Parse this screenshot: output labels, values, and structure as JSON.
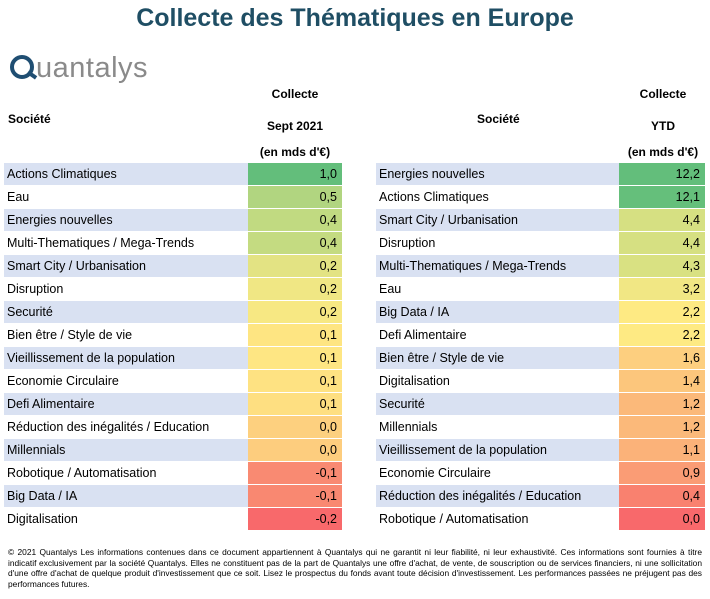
{
  "title": "Collecte des Thématiques en Europe",
  "logo_text": "uantalys",
  "left_table": {
    "col_company": "Société",
    "col_value_line1": "Collecte",
    "col_value_line2": "Sept 2021",
    "col_value_line3": "(en mds d'€)"
  },
  "right_table": {
    "col_company": "Société",
    "col_value_line1": "Collecte",
    "col_value_line2": "YTD",
    "col_value_line3": "(en mds d'€)"
  },
  "chart_data": [
    {
      "type": "table",
      "title": "Collecte Sept 2021 (en mds d'€)",
      "rows": [
        {
          "name": "Actions Climatiques",
          "value": "1,0",
          "color": "#63be7b"
        },
        {
          "name": "Eau",
          "value": "0,5",
          "color": "#b1d580"
        },
        {
          "name": "Energies nouvelles",
          "value": "0,4",
          "color": "#c1da81"
        },
        {
          "name": "Multi-Thematiques / Mega-Trends",
          "value": "0,4",
          "color": "#c4db81"
        },
        {
          "name": "Smart City / Urbanisation",
          "value": "0,2",
          "color": "#e3e383"
        },
        {
          "name": "Disruption",
          "value": "0,2",
          "color": "#f0e784"
        },
        {
          "name": "Securité",
          "value": "0,2",
          "color": "#f7e883"
        },
        {
          "name": "Bien être / Style de vie",
          "value": "0,1",
          "color": "#fee582"
        },
        {
          "name": "Vieillissement de la population",
          "value": "0,1",
          "color": "#fee683"
        },
        {
          "name": "Economie Circulaire",
          "value": "0,1",
          "color": "#fee282"
        },
        {
          "name": "Defi Alimentaire",
          "value": "0,1",
          "color": "#fedf81"
        },
        {
          "name": "Réduction des inégalités / Education",
          "value": "0,0",
          "color": "#fdd07f"
        },
        {
          "name": "Millennials",
          "value": "0,0",
          "color": "#fdcd7e"
        },
        {
          "name": "Robotique / Automatisation",
          "value": "-0,1",
          "color": "#f98a72"
        },
        {
          "name": "Big Data / IA",
          "value": "-0,1",
          "color": "#f98871"
        },
        {
          "name": "Digitalisation",
          "value": "-0,2",
          "color": "#f8696b"
        }
      ]
    },
    {
      "type": "table",
      "title": "Collecte YTD (en mds d'€)",
      "rows": [
        {
          "name": "Energies nouvelles",
          "value": "12,2",
          "color": "#63be7b"
        },
        {
          "name": "Actions Climatiques",
          "value": "12,1",
          "color": "#65bf7b"
        },
        {
          "name": "Smart City / Urbanisation",
          "value": "4,4",
          "color": "#d6e082"
        },
        {
          "name": "Disruption",
          "value": "4,4",
          "color": "#d6e082"
        },
        {
          "name": "Multi-Thematiques / Mega-Trends",
          "value": "4,3",
          "color": "#d9e182"
        },
        {
          "name": "Eau",
          "value": "3,2",
          "color": "#f1e784"
        },
        {
          "name": "Big Data / IA",
          "value": "2,2",
          "color": "#feea83"
        },
        {
          "name": "Defi Alimentaire",
          "value": "2,2",
          "color": "#feea83"
        },
        {
          "name": "Bien être / Style de vie",
          "value": "1,6",
          "color": "#fdcf7f"
        },
        {
          "name": "Digitalisation",
          "value": "1,4",
          "color": "#fcc67c"
        },
        {
          "name": "Securité",
          "value": "1,2",
          "color": "#fbb97a"
        },
        {
          "name": "Millennials",
          "value": "1,2",
          "color": "#fbb97a"
        },
        {
          "name": "Vieillissement de la population",
          "value": "1,1",
          "color": "#fbb279"
        },
        {
          "name": "Economie Circulaire",
          "value": "0,9",
          "color": "#fa9c75"
        },
        {
          "name": "Réduction des inégalités / Education",
          "value": "0,4",
          "color": "#f9816f"
        },
        {
          "name": "Robotique / Automatisation",
          "value": "0,0",
          "color": "#f8696b"
        }
      ]
    }
  ],
  "footer": "© 2021 Quantalys Les informations contenues dans ce document appartiennent à Quantalys qui ne garantit ni leur fiabilité, ni leur exhaustivité. Ces informations sont fournies à titre indicatif exclusivement par la société Quantalys. Elles ne constituent pas de la part de Quantalys une offre d'achat, de vente, de souscription ou de services financiers, ni une sollicitation d'une offre d'achat de quelque produit d'investissement que ce soit. Lisez le prospectus du fonds avant toute décision d'investissement. Les performances passées ne préjugent pas des performances futures."
}
